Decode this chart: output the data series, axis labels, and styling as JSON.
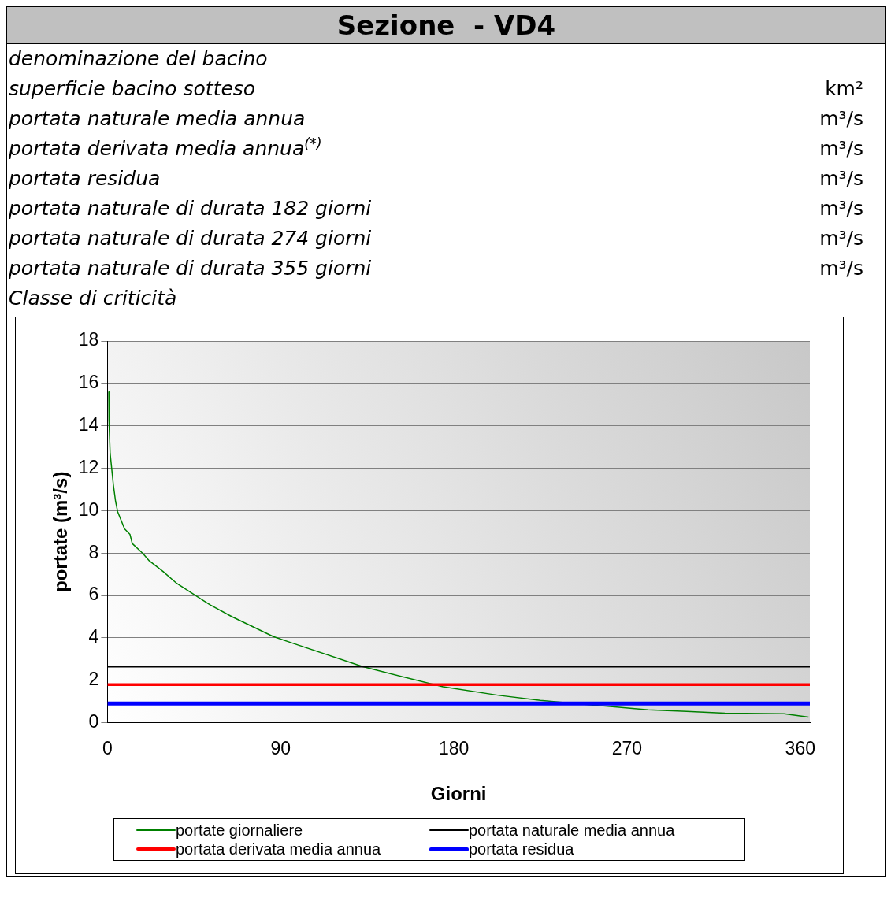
{
  "chart_data": {
    "type": "line",
    "title": "Sezione  - VD4",
    "annotations": [
      "denominazione del bacino",
      "superficie bacino sotteso",
      "km²",
      "portata naturale media annua",
      "m³/s",
      "portata derivata media annua$^{(*)}$",
      "m³/s",
      "portata residua",
      "m³/s",
      "portata naturale di durata 182 giorni",
      "m³/s",
      "portata naturale di durata 274 giorni",
      "m³/s",
      "portata naturale di durata 355 giorni",
      "m³/s",
      "Classe di criticità"
    ],
    "xlabel": "Giorni",
    "ylabel": "portate (m³/s)",
    "xlim": [
      0,
      365
    ],
    "xticks": [
      0,
      90,
      180,
      270,
      360
    ],
    "ylim": [
      0,
      18
    ],
    "yticks": [
      0,
      2,
      4,
      6,
      8,
      10,
      12,
      14,
      16,
      18
    ],
    "grid": "y",
    "legend": "bottom",
    "marker": "none",
    "line_style": "solid",
    "series": [
      {
        "name": "portate giornaliere",
        "color": "#008000",
        "x": [
          0.7,
          0.8,
          1.4,
          3.1,
          4.2,
          5.3,
          8.9,
          11.7,
          12.9,
          18.2,
          21.8,
          28.9,
          36,
          44.7,
          53.3,
          64.7,
          76.2,
          86.2,
          96.2,
          132.8,
          174.4,
          203.4,
          225,
          257.6,
          281,
          301,
          320.8,
          351.6,
          360.6,
          364.3
        ],
        "values": [
          15.6,
          14.3,
          12.7,
          11.2,
          10.45,
          9.95,
          9.14,
          8.88,
          8.45,
          8.0,
          7.63,
          7.13,
          6.57,
          6.06,
          5.56,
          5.0,
          4.5,
          4.06,
          3.75,
          2.64,
          1.69,
          1.29,
          1.05,
          0.79,
          0.61,
          0.53,
          0.45,
          0.42,
          0.31,
          0.26
        ]
      },
      {
        "name": "portata naturale media annua",
        "color": "#000000",
        "x": [
          0,
          365
        ],
        "values": [
          2.63,
          2.63
        ]
      },
      {
        "name": "portata derivata media annua",
        "color": "#ff0000",
        "x": [
          0,
          365
        ],
        "values": [
          1.8,
          1.8
        ]
      },
      {
        "name": "portata residua",
        "color": "#0000ff",
        "x": [
          0,
          365
        ],
        "values": [
          0.9,
          0.9
        ]
      }
    ]
  }
}
